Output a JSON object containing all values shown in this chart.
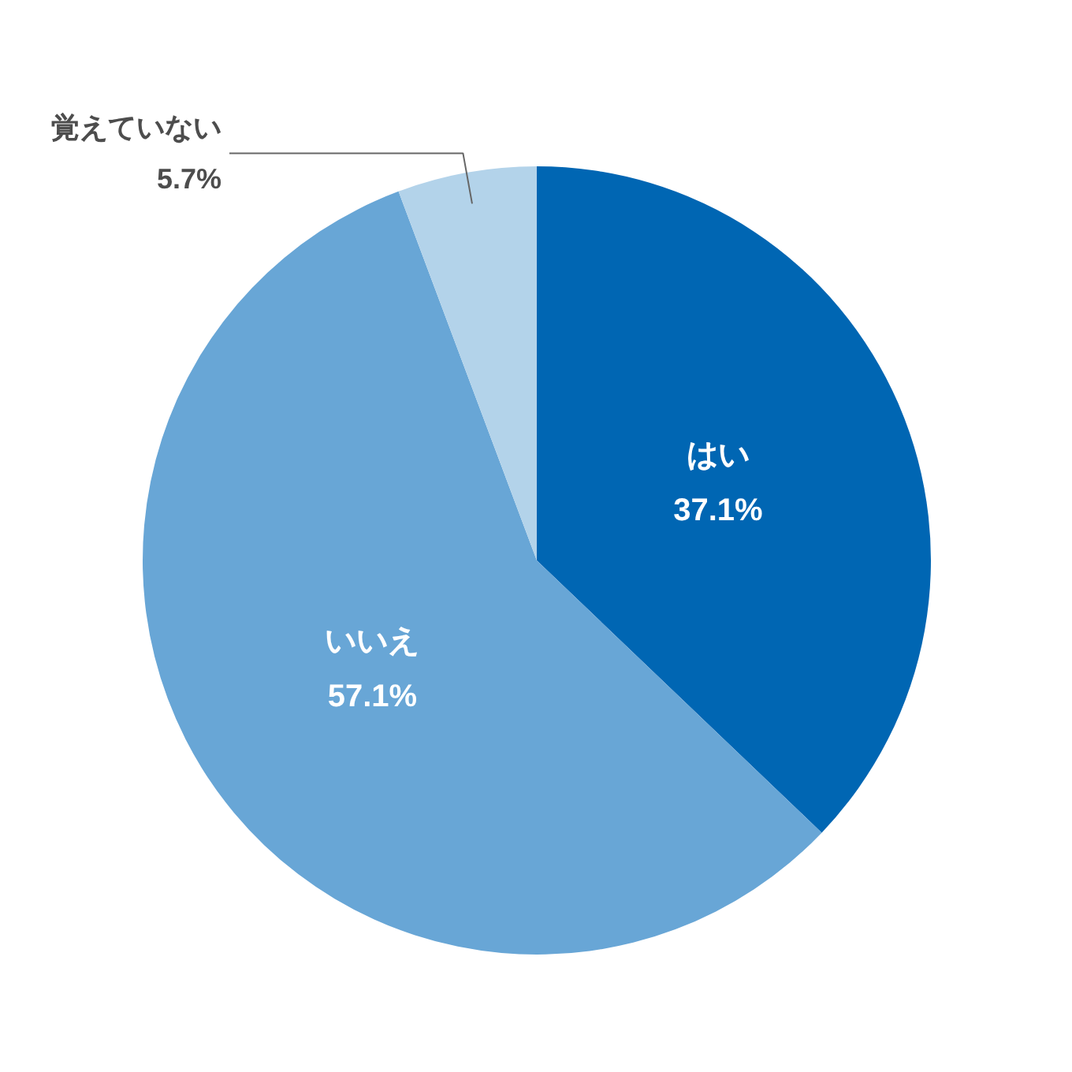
{
  "chart_data": {
    "type": "pie",
    "categories": [
      "はい",
      "いいえ",
      "覚えていない"
    ],
    "values": [
      37.1,
      57.1,
      5.7
    ],
    "colors": [
      "#0066b3",
      "#68a6d6",
      "#b3d3ea"
    ],
    "value_labels": [
      "37.1%",
      "57.1%",
      "5.7%"
    ]
  }
}
